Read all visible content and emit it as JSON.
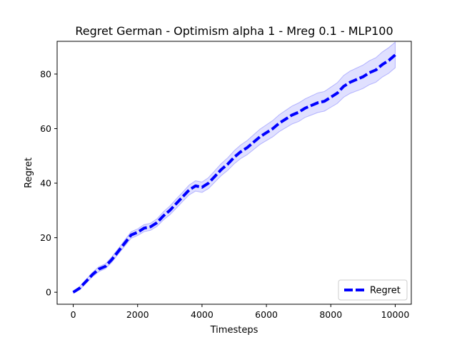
{
  "chart_data": {
    "type": "line",
    "title": "Regret German - Optimism alpha 1 - Mreg 0.1 - MLP100",
    "xlabel": "Timesteps",
    "ylabel": "Regret",
    "xlim": [
      -500,
      10500
    ],
    "ylim": [
      -4.4,
      92
    ],
    "xticks": [
      0,
      2000,
      4000,
      6000,
      8000,
      10000
    ],
    "xtick_labels": [
      "0",
      "2000",
      "4000",
      "6000",
      "8000",
      "10000"
    ],
    "yticks": [
      0,
      20,
      40,
      60,
      80
    ],
    "ytick_labels": [
      "0",
      "20",
      "40",
      "60",
      "80"
    ],
    "grid": false,
    "legend_position": "bottom-right",
    "series": [
      {
        "name": "Regret",
        "color": "#0000ff",
        "band_color": "#0000ff",
        "line_style": "dashed",
        "x": [
          0,
          200,
          400,
          600,
          800,
          1000,
          1200,
          1400,
          1600,
          1800,
          2000,
          2200,
          2400,
          2600,
          2800,
          3000,
          3200,
          3400,
          3600,
          3800,
          4000,
          4200,
          4400,
          4600,
          4800,
          5000,
          5200,
          5400,
          5600,
          5800,
          6000,
          6200,
          6400,
          6600,
          6800,
          7000,
          7200,
          7400,
          7600,
          7800,
          8000,
          8200,
          8400,
          8600,
          8800,
          9000,
          9200,
          9400,
          9600,
          9800,
          10000
        ],
        "y": [
          0,
          1.5,
          4,
          6.5,
          8.5,
          9.5,
          12,
          15,
          18,
          21,
          22,
          23.5,
          24,
          25.5,
          28,
          30,
          32.5,
          35,
          37.5,
          39,
          38.5,
          40,
          42.5,
          45,
          47,
          49.5,
          51.5,
          53,
          55,
          57,
          58.5,
          60,
          62,
          63.5,
          65,
          66,
          67.5,
          68.5,
          69.5,
          70,
          71.5,
          73,
          75.5,
          77,
          78,
          79,
          80.5,
          81.5,
          83.5,
          85,
          87
        ],
        "lower": [
          -0.3,
          0.9,
          3.3,
          5.7,
          7.6,
          8.6,
          11.0,
          14.0,
          16.9,
          19.8,
          20.8,
          22.2,
          22.7,
          24.1,
          26.5,
          28.4,
          30.8,
          33.3,
          35.7,
          37.1,
          36.6,
          38.0,
          40.4,
          42.8,
          44.7,
          47.1,
          49.0,
          50.4,
          52.3,
          54.2,
          55.6,
          57.0,
          58.9,
          60.3,
          61.7,
          62.6,
          64.1,
          65.0,
          65.9,
          66.4,
          67.8,
          69.2,
          71.5,
          72.9,
          73.8,
          74.7,
          76.1,
          77.0,
          78.9,
          80.3,
          82.3
        ],
        "upper": [
          0.3,
          2.1,
          4.7,
          7.3,
          9.4,
          10.4,
          13.0,
          16.0,
          19.1,
          22.2,
          23.2,
          24.8,
          25.3,
          26.9,
          29.5,
          31.6,
          34.2,
          36.7,
          39.3,
          40.9,
          40.4,
          42.0,
          44.6,
          47.2,
          49.3,
          51.9,
          54.0,
          55.6,
          57.7,
          59.8,
          61.4,
          63.0,
          65.1,
          66.7,
          68.3,
          69.4,
          70.9,
          72.0,
          73.1,
          73.6,
          75.2,
          76.8,
          79.5,
          81.1,
          82.2,
          83.3,
          84.9,
          86.0,
          88.1,
          89.7,
          91.7
        ]
      }
    ]
  }
}
